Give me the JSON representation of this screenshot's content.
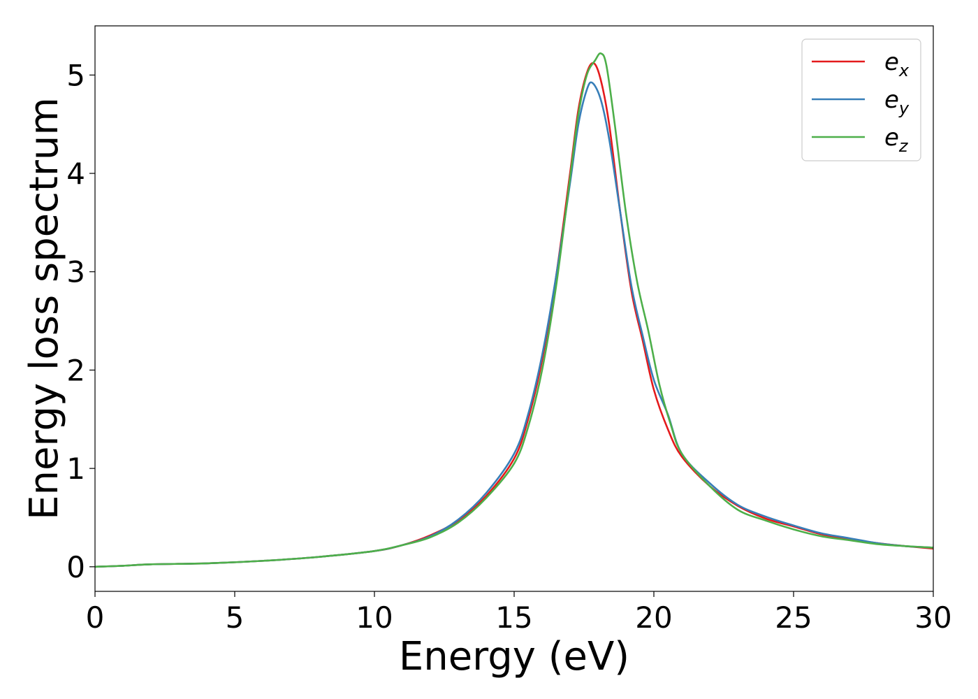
{
  "chart_data": {
    "type": "line",
    "title": "",
    "xlabel": "Energy (eV)",
    "ylabel": "Energy loss spectrum",
    "xlim": [
      0,
      30
    ],
    "ylim": [
      -0.25,
      5.5
    ],
    "xticks": [
      0,
      5,
      10,
      15,
      20,
      25,
      30
    ],
    "yticks": [
      0,
      1,
      2,
      3,
      4,
      5
    ],
    "grid": false,
    "legend_position": "top-right",
    "series": [
      {
        "name": "e_x",
        "label_base": "e",
        "label_sub": "x",
        "color": "#e41a1c",
        "points": [
          [
            0,
            0
          ],
          [
            1,
            0.01
          ],
          [
            2,
            0.025
          ],
          [
            4,
            0.035
          ],
          [
            6,
            0.06
          ],
          [
            8,
            0.1
          ],
          [
            10,
            0.16
          ],
          [
            11,
            0.22
          ],
          [
            12,
            0.32
          ],
          [
            13,
            0.47
          ],
          [
            14,
            0.72
          ],
          [
            15,
            1.1
          ],
          [
            15.5,
            1.5
          ],
          [
            16,
            2.1
          ],
          [
            16.5,
            2.95
          ],
          [
            17,
            4.0
          ],
          [
            17.3,
            4.65
          ],
          [
            17.6,
            5.02
          ],
          [
            17.85,
            5.12
          ],
          [
            18.1,
            4.95
          ],
          [
            18.4,
            4.5
          ],
          [
            18.8,
            3.6
          ],
          [
            19.2,
            2.8
          ],
          [
            19.6,
            2.3
          ],
          [
            20,
            1.8
          ],
          [
            20.5,
            1.4
          ],
          [
            21,
            1.12
          ],
          [
            22,
            0.82
          ],
          [
            23,
            0.62
          ],
          [
            24,
            0.49
          ],
          [
            25,
            0.41
          ],
          [
            26,
            0.33
          ],
          [
            27,
            0.28
          ],
          [
            28,
            0.24
          ],
          [
            29,
            0.21
          ],
          [
            30,
            0.185
          ]
        ]
      },
      {
        "name": "e_y",
        "label_base": "e",
        "label_sub": "y",
        "color": "#377eb8",
        "points": [
          [
            0,
            0
          ],
          [
            1,
            0.01
          ],
          [
            2,
            0.025
          ],
          [
            4,
            0.035
          ],
          [
            6,
            0.06
          ],
          [
            8,
            0.1
          ],
          [
            10,
            0.16
          ],
          [
            11,
            0.22
          ],
          [
            12,
            0.31
          ],
          [
            13,
            0.48
          ],
          [
            14,
            0.75
          ],
          [
            15,
            1.15
          ],
          [
            15.5,
            1.55
          ],
          [
            16,
            2.15
          ],
          [
            16.5,
            2.95
          ],
          [
            17,
            3.9
          ],
          [
            17.3,
            4.5
          ],
          [
            17.6,
            4.85
          ],
          [
            17.8,
            4.92
          ],
          [
            18.1,
            4.75
          ],
          [
            18.4,
            4.35
          ],
          [
            18.8,
            3.6
          ],
          [
            19.2,
            2.85
          ],
          [
            19.6,
            2.35
          ],
          [
            20,
            1.9
          ],
          [
            20.5,
            1.55
          ],
          [
            21,
            1.15
          ],
          [
            22,
            0.85
          ],
          [
            23,
            0.63
          ],
          [
            24,
            0.51
          ],
          [
            25,
            0.42
          ],
          [
            26,
            0.34
          ],
          [
            27,
            0.29
          ],
          [
            28,
            0.24
          ],
          [
            29,
            0.21
          ],
          [
            30,
            0.195
          ]
        ]
      },
      {
        "name": "e_z",
        "label_base": "e",
        "label_sub": "z",
        "color": "#4daf4a",
        "points": [
          [
            0,
            0
          ],
          [
            1,
            0.01
          ],
          [
            2,
            0.025
          ],
          [
            4,
            0.035
          ],
          [
            6,
            0.06
          ],
          [
            8,
            0.1
          ],
          [
            10,
            0.16
          ],
          [
            11,
            0.22
          ],
          [
            12,
            0.3
          ],
          [
            13,
            0.45
          ],
          [
            14,
            0.7
          ],
          [
            15,
            1.05
          ],
          [
            15.5,
            1.42
          ],
          [
            16,
            2.0
          ],
          [
            16.5,
            2.85
          ],
          [
            17,
            3.95
          ],
          [
            17.3,
            4.6
          ],
          [
            17.6,
            5.0
          ],
          [
            17.9,
            5.15
          ],
          [
            18.1,
            5.22
          ],
          [
            18.3,
            5.1
          ],
          [
            18.6,
            4.5
          ],
          [
            19,
            3.6
          ],
          [
            19.4,
            2.9
          ],
          [
            19.8,
            2.4
          ],
          [
            20.2,
            1.85
          ],
          [
            20.6,
            1.45
          ],
          [
            21,
            1.15
          ],
          [
            22,
            0.82
          ],
          [
            23,
            0.58
          ],
          [
            24,
            0.47
          ],
          [
            25,
            0.38
          ],
          [
            26,
            0.31
          ],
          [
            27,
            0.27
          ],
          [
            28,
            0.23
          ],
          [
            29,
            0.21
          ],
          [
            30,
            0.195
          ]
        ]
      }
    ]
  }
}
